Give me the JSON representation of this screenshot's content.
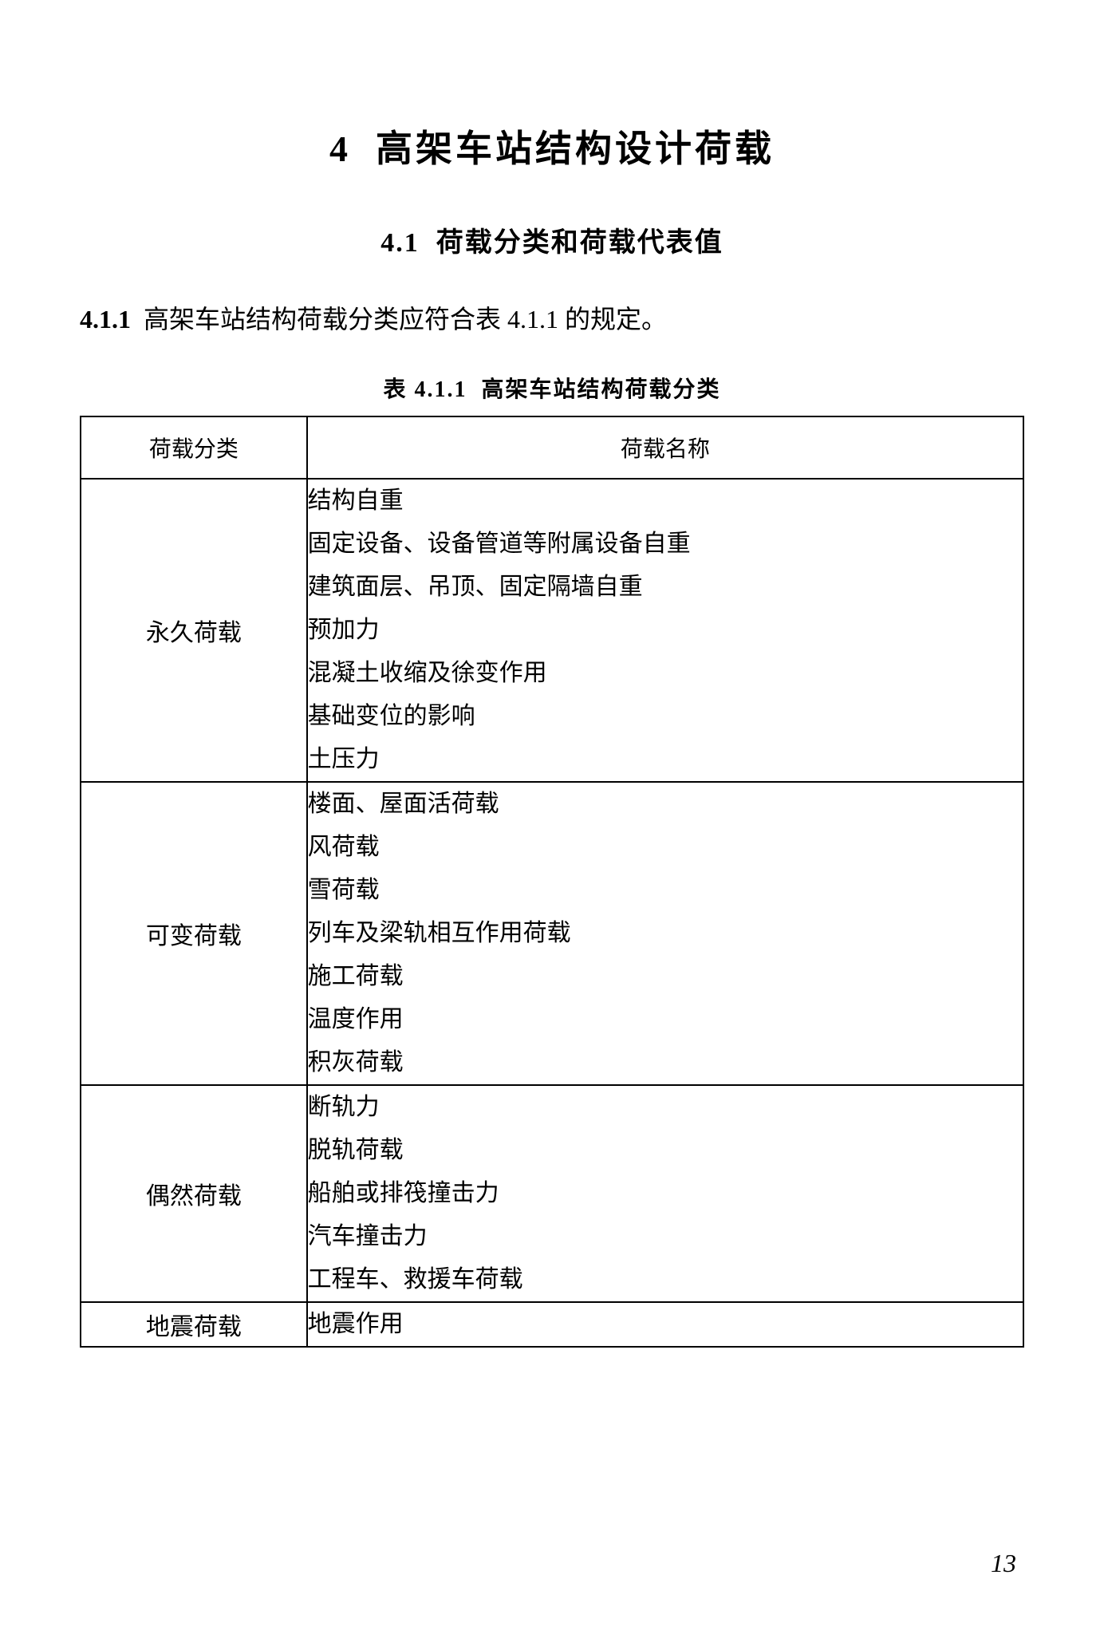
{
  "chapter": {
    "number": "4",
    "title": "高架车站结构设计荷载"
  },
  "section": {
    "number": "4.1",
    "title": "荷载分类和荷载代表值"
  },
  "paragraph": {
    "number": "4.1.1",
    "text": "高架车站结构荷载分类应符合表 4.1.1 的规定。"
  },
  "table": {
    "caption_number": "表 4.1.1",
    "caption_text": "高架车站结构荷载分类",
    "header_category": "荷载分类",
    "header_names": "荷载名称",
    "rows": [
      {
        "category": "永久荷载",
        "items": [
          "结构自重",
          "固定设备、设备管道等附属设备自重",
          "建筑面层、吊顶、固定隔墙自重",
          "预加力",
          "混凝土收缩及徐变作用",
          "基础变位的影响",
          "土压力"
        ]
      },
      {
        "category": "可变荷载",
        "items": [
          "楼面、屋面活荷载",
          "风荷载",
          "雪荷载",
          "列车及梁轨相互作用荷载",
          "施工荷载",
          "温度作用",
          "积灰荷载"
        ]
      },
      {
        "category": "偶然荷载",
        "items": [
          "断轨力",
          "脱轨荷载",
          "船舶或排筏撞击力",
          "汽车撞击力",
          "工程车、救援车荷载"
        ]
      },
      {
        "category": "地震荷载",
        "items": [
          "地震作用"
        ]
      }
    ]
  },
  "page_number": "13"
}
